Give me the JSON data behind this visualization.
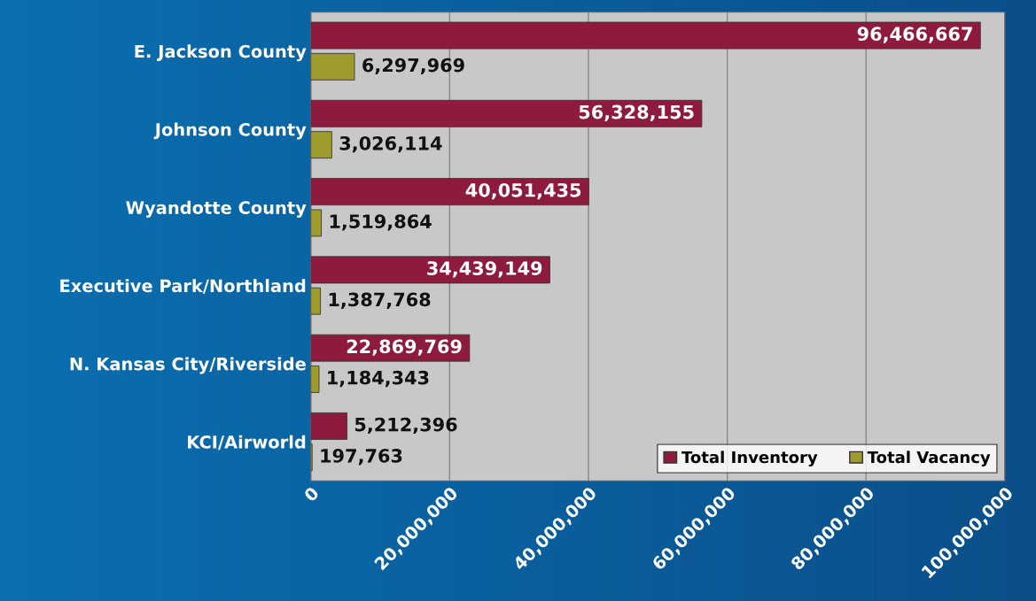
{
  "chart_data": {
    "type": "bar",
    "orientation": "horizontal",
    "categories": [
      "E. Jackson County",
      "Johnson County",
      "Wyandotte County",
      "Executive Park/Northland",
      "N. Kansas City/Riverside",
      "KCI/Airworld"
    ],
    "series": [
      {
        "name": "Total Inventory",
        "color": "#8e1b3e",
        "values": [
          96466667,
          56328155,
          40051435,
          34439149,
          22869769,
          5212396
        ],
        "value_labels": [
          "96,466,667",
          "56,328,155",
          "40,051,435",
          "34,439,149",
          "22,869,769",
          "5,212,396"
        ]
      },
      {
        "name": "Total Vacancy",
        "color": "#9c9b2c",
        "values": [
          6297969,
          3026114,
          1519864,
          1387768,
          1184343,
          197763
        ],
        "value_labels": [
          "6,297,969",
          "3,026,114",
          "1,519,864",
          "1,387,768",
          "1,184,343",
          "197,763"
        ]
      }
    ],
    "xlim": [
      0,
      100000000
    ],
    "xticks": [
      0,
      {
        "value": 20000000,
        "label": "20,000,000"
      },
      {
        "value": 40000000,
        "label": "40,000,000"
      },
      {
        "value": 60000000,
        "label": "60,000,000"
      },
      {
        "value": 80000000,
        "label": "80,000,000"
      },
      {
        "value": 100000000,
        "label": "100,000,000"
      }
    ],
    "grid": "x",
    "legend": "bottom right"
  }
}
